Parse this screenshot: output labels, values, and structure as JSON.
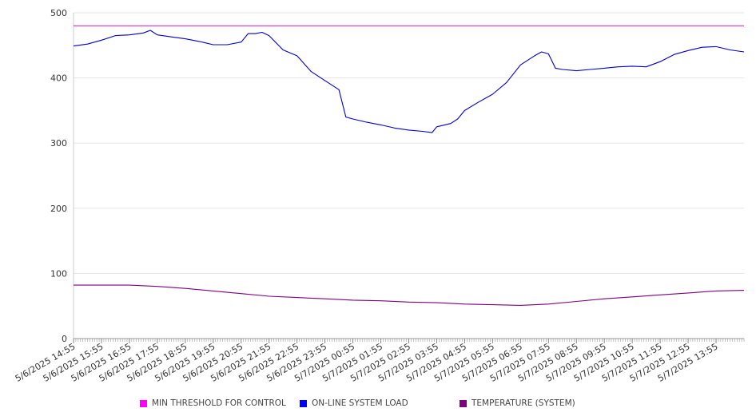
{
  "chart_data": {
    "type": "line",
    "title": "",
    "xlabel": "",
    "ylabel": "",
    "ylim": [
      0,
      500
    ],
    "yticks": [
      0,
      100,
      200,
      300,
      400,
      500
    ],
    "grid": true,
    "legend_position": "bottom",
    "x_tick_labels": [
      "5/6/2025 14:55",
      "5/6/2025 15:55",
      "5/6/2025 16:55",
      "5/6/2025 17:55",
      "5/6/2025 18:55",
      "5/6/2025 19:55",
      "5/6/2025 20:55",
      "5/6/2025 21:55",
      "5/6/2025 22:55",
      "5/6/2025 23:55",
      "5/7/2025 00:55",
      "5/7/2025 01:55",
      "5/7/2025 02:55",
      "5/7/2025 03:55",
      "5/7/2025 04:55",
      "5/7/2025 05:55",
      "5/7/2025 06:55",
      "5/7/2025 07:55",
      "5/7/2025 08:55",
      "5/7/2025 09:55",
      "5/7/2025 10:55",
      "5/7/2025 11:55",
      "5/7/2025 12:55",
      "5/7/2025 13:55"
    ],
    "series": [
      {
        "name": "MIN THRESHOLD FOR CONTROL",
        "color": "#cc33cc",
        "points": [
          [
            "5/6/2025 14:55",
            480
          ],
          [
            "5/7/2025 14:55",
            480
          ]
        ]
      },
      {
        "name": "ON-LINE SYSTEM LOAD",
        "color": "#0000cc",
        "points": [
          [
            "5/6/2025 14:55",
            449
          ],
          [
            "5/6/2025 15:25",
            452
          ],
          [
            "5/6/2025 15:55",
            458
          ],
          [
            "5/6/2025 16:25",
            465
          ],
          [
            "5/6/2025 16:55",
            466
          ],
          [
            "5/6/2025 17:25",
            469
          ],
          [
            "5/6/2025 17:40",
            473
          ],
          [
            "5/6/2025 17:55",
            466
          ],
          [
            "5/6/2025 18:25",
            463
          ],
          [
            "5/6/2025 18:55",
            460
          ],
          [
            "5/6/2025 19:25",
            456
          ],
          [
            "5/6/2025 19:55",
            451
          ],
          [
            "5/6/2025 20:25",
            451
          ],
          [
            "5/6/2025 20:55",
            455
          ],
          [
            "5/6/2025 21:10",
            468
          ],
          [
            "5/6/2025 21:25",
            468
          ],
          [
            "5/6/2025 21:40",
            470
          ],
          [
            "5/6/2025 21:55",
            465
          ],
          [
            "5/6/2025 22:25",
            443
          ],
          [
            "5/6/2025 22:55",
            434
          ],
          [
            "5/6/2025 23:25",
            410
          ],
          [
            "5/6/2025 23:55",
            396
          ],
          [
            "5/7/2025 00:25",
            382
          ],
          [
            "5/7/2025 00:40",
            340
          ],
          [
            "5/7/2025 00:55",
            337
          ],
          [
            "5/7/2025 01:25",
            332
          ],
          [
            "5/7/2025 01:55",
            328
          ],
          [
            "5/7/2025 02:25",
            323
          ],
          [
            "5/7/2025 02:55",
            320
          ],
          [
            "5/7/2025 03:25",
            318
          ],
          [
            "5/7/2025 03:45",
            316
          ],
          [
            "5/7/2025 03:55",
            325
          ],
          [
            "5/7/2025 04:25",
            330
          ],
          [
            "5/7/2025 04:40",
            337
          ],
          [
            "5/7/2025 04:55",
            350
          ],
          [
            "5/7/2025 05:25",
            363
          ],
          [
            "5/7/2025 05:55",
            375
          ],
          [
            "5/7/2025 06:25",
            393
          ],
          [
            "5/7/2025 06:55",
            420
          ],
          [
            "5/7/2025 07:25",
            434
          ],
          [
            "5/7/2025 07:40",
            440
          ],
          [
            "5/7/2025 07:55",
            437
          ],
          [
            "5/7/2025 08:10",
            415
          ],
          [
            "5/7/2025 08:25",
            413
          ],
          [
            "5/7/2025 08:55",
            411
          ],
          [
            "5/7/2025 09:25",
            413
          ],
          [
            "5/7/2025 09:55",
            415
          ],
          [
            "5/7/2025 10:25",
            417
          ],
          [
            "5/7/2025 10:55",
            418
          ],
          [
            "5/7/2025 11:25",
            417
          ],
          [
            "5/7/2025 11:55",
            425
          ],
          [
            "5/7/2025 12:25",
            436
          ],
          [
            "5/7/2025 12:55",
            442
          ],
          [
            "5/7/2025 13:25",
            447
          ],
          [
            "5/7/2025 13:55",
            448
          ],
          [
            "5/7/2025 14:25",
            443
          ],
          [
            "5/7/2025 14:55",
            440
          ]
        ]
      },
      {
        "name": "TEMPERATURE (SYSTEM)",
        "color": "#800080",
        "points": [
          [
            "5/6/2025 14:55",
            82
          ],
          [
            "5/6/2025 16:55",
            82
          ],
          [
            "5/6/2025 17:55",
            80
          ],
          [
            "5/6/2025 18:55",
            77
          ],
          [
            "5/6/2025 19:55",
            73
          ],
          [
            "5/6/2025 20:55",
            69
          ],
          [
            "5/6/2025 21:55",
            65
          ],
          [
            "5/6/2025 22:55",
            63
          ],
          [
            "5/6/2025 23:55",
            61
          ],
          [
            "5/7/2025 00:55",
            59
          ],
          [
            "5/7/2025 01:55",
            58
          ],
          [
            "5/7/2025 02:55",
            56
          ],
          [
            "5/7/2025 03:55",
            55
          ],
          [
            "5/7/2025 04:55",
            53
          ],
          [
            "5/7/2025 05:55",
            52
          ],
          [
            "5/7/2025 06:55",
            51
          ],
          [
            "5/7/2025 07:55",
            53
          ],
          [
            "5/7/2025 08:55",
            57
          ],
          [
            "5/7/2025 09:55",
            61
          ],
          [
            "5/7/2025 10:55",
            64
          ],
          [
            "5/7/2025 11:55",
            67
          ],
          [
            "5/7/2025 12:55",
            70
          ],
          [
            "5/7/2025 13:55",
            73
          ],
          [
            "5/7/2025 14:55",
            74
          ]
        ]
      }
    ]
  }
}
